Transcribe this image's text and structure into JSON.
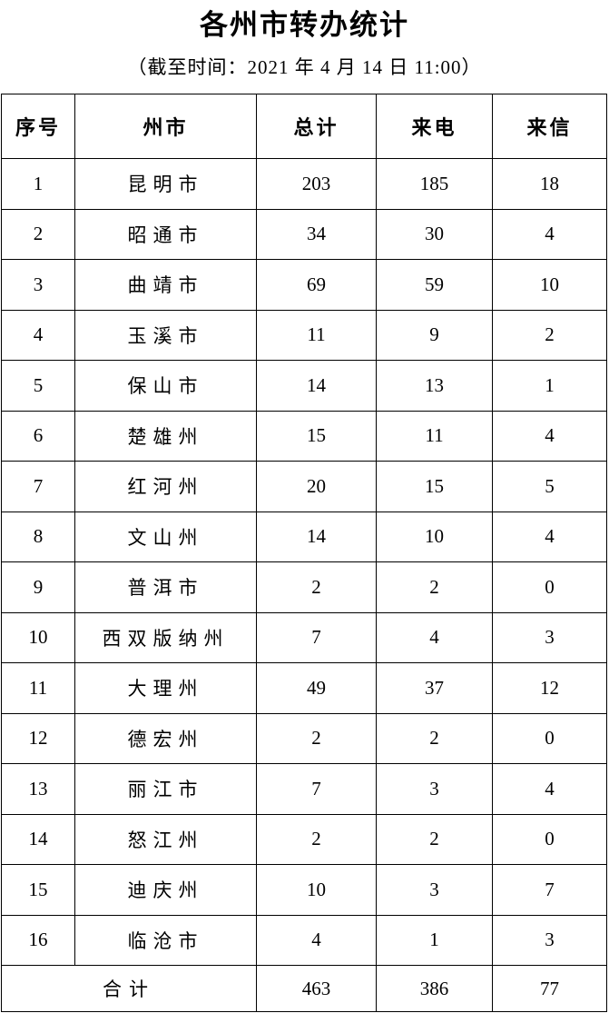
{
  "title": "各州市转办统计",
  "subtitle": "（截至时间：2021 年 4 月 14 日 11:00）",
  "table": {
    "headers": [
      "序号",
      "州市",
      "总计",
      "来电",
      "来信"
    ],
    "rows": [
      {
        "no": "1",
        "city": "昆明市",
        "total": "203",
        "calls": "185",
        "letters": "18"
      },
      {
        "no": "2",
        "city": "昭通市",
        "total": "34",
        "calls": "30",
        "letters": "4"
      },
      {
        "no": "3",
        "city": "曲靖市",
        "total": "69",
        "calls": "59",
        "letters": "10"
      },
      {
        "no": "4",
        "city": "玉溪市",
        "total": "11",
        "calls": "9",
        "letters": "2"
      },
      {
        "no": "5",
        "city": "保山市",
        "total": "14",
        "calls": "13",
        "letters": "1"
      },
      {
        "no": "6",
        "city": "楚雄州",
        "total": "15",
        "calls": "11",
        "letters": "4"
      },
      {
        "no": "7",
        "city": "红河州",
        "total": "20",
        "calls": "15",
        "letters": "5"
      },
      {
        "no": "8",
        "city": "文山州",
        "total": "14",
        "calls": "10",
        "letters": "4"
      },
      {
        "no": "9",
        "city": "普洱市",
        "total": "2",
        "calls": "2",
        "letters": "0"
      },
      {
        "no": "10",
        "city": "西双版纳州",
        "total": "7",
        "calls": "4",
        "letters": "3"
      },
      {
        "no": "11",
        "city": "大理州",
        "total": "49",
        "calls": "37",
        "letters": "12"
      },
      {
        "no": "12",
        "city": "德宏州",
        "total": "2",
        "calls": "2",
        "letters": "0"
      },
      {
        "no": "13",
        "city": "丽江市",
        "total": "7",
        "calls": "3",
        "letters": "4"
      },
      {
        "no": "14",
        "city": "怒江州",
        "total": "2",
        "calls": "2",
        "letters": "0"
      },
      {
        "no": "15",
        "city": "迪庆州",
        "total": "10",
        "calls": "3",
        "letters": "7"
      },
      {
        "no": "16",
        "city": "临沧市",
        "total": "4",
        "calls": "1",
        "letters": "3"
      }
    ],
    "footer": {
      "label": "合计",
      "total": "463",
      "calls": "386",
      "letters": "77"
    }
  }
}
